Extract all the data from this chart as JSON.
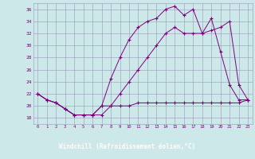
{
  "xlabel": "Windchill (Refroidissement éolien,°C)",
  "x": [
    0,
    1,
    2,
    3,
    4,
    5,
    6,
    7,
    8,
    9,
    10,
    11,
    12,
    13,
    14,
    15,
    16,
    17,
    18,
    19,
    20,
    21,
    22,
    23
  ],
  "line1": [
    22,
    21,
    20.5,
    19.5,
    18.5,
    18.5,
    18.5,
    18.5,
    20,
    20,
    20,
    20.5,
    20.5,
    20.5,
    20.5,
    20.5,
    20.5,
    20.5,
    20.5,
    20.5,
    20.5,
    20.5,
    20.5,
    21
  ],
  "line2": [
    22,
    21,
    20.5,
    19.5,
    18.5,
    18.5,
    18.5,
    20,
    24.5,
    28,
    31,
    33,
    34,
    34.5,
    36,
    36.5,
    35,
    36,
    32,
    34.5,
    29,
    23.5,
    21,
    21
  ],
  "line3": [
    22,
    21,
    20.5,
    19.5,
    18.5,
    18.5,
    18.5,
    20,
    20,
    22,
    24,
    26,
    28,
    30,
    32,
    33,
    32,
    32,
    32,
    32.5,
    33,
    34,
    23.5,
    21
  ],
  "ylim": [
    17,
    37
  ],
  "xlim": [
    -0.5,
    23.5
  ],
  "yticks": [
    18,
    20,
    22,
    24,
    26,
    28,
    30,
    32,
    34,
    36
  ],
  "xticks": [
    0,
    1,
    2,
    3,
    4,
    5,
    6,
    7,
    8,
    9,
    10,
    11,
    12,
    13,
    14,
    15,
    16,
    17,
    18,
    19,
    20,
    21,
    22,
    23
  ],
  "line_color": "#800080",
  "bg_color": "#cce8e8",
  "grid_color": "#9999bb",
  "plot_bg": "#cce8e8",
  "bottom_bar_color": "#6633aa",
  "xlabel_bg": "#6633aa"
}
